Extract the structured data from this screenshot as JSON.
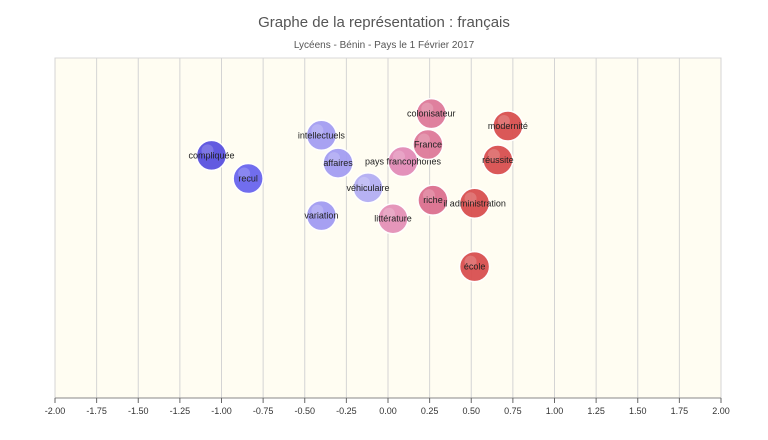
{
  "chart_data": {
    "type": "scatter",
    "title": "Graphe de la représentation : français",
    "subtitle": "Lycéens - Bénin - Pays le 1 Février 2017",
    "xlabel": "",
    "ylabel": "",
    "xlim": [
      -2.0,
      2.0
    ],
    "x_ticks": [
      "-2.00",
      "-1.75",
      "-1.50",
      "-1.25",
      "-1.00",
      "-0.75",
      "-0.50",
      "-0.25",
      "0.00",
      "0.25",
      "0.50",
      "0.75",
      "1.00",
      "1.25",
      "1.50",
      "1.75",
      "2.00"
    ],
    "grid": "vertical",
    "background_color": "#fffdf2",
    "points": [
      {
        "label": "compliquée",
        "x": -1.06,
        "y": 0.37,
        "color": "#5a52e0"
      },
      {
        "label": "recul",
        "x": -0.84,
        "y": 0.22,
        "color": "#6a66ee"
      },
      {
        "label": "intellectuels",
        "x": -0.4,
        "y": 0.5,
        "color": "#a49ef2"
      },
      {
        "label": "affaires",
        "x": -0.3,
        "y": 0.32,
        "color": "#a49ef2"
      },
      {
        "label": "véhiculaire",
        "x": -0.12,
        "y": 0.16,
        "color": "#b4aff4"
      },
      {
        "label": "variation",
        "x": -0.4,
        "y": -0.02,
        "color": "#a29cf2"
      },
      {
        "label": "pays francophones",
        "x": 0.09,
        "y": 0.33,
        "color": "#e28cb8"
      },
      {
        "label": "colonisateur",
        "x": 0.26,
        "y": 0.64,
        "color": "#de7a9a"
      },
      {
        "label": "France",
        "x": 0.24,
        "y": 0.44,
        "color": "#de7a9a"
      },
      {
        "label": "littérature",
        "x": 0.03,
        "y": -0.04,
        "color": "#e491b8"
      },
      {
        "label": "riche",
        "x": 0.27,
        "y": 0.08,
        "color": "#dc7090"
      },
      {
        "label": "il administration",
        "x": 0.52,
        "y": 0.06,
        "color": "#d95050"
      },
      {
        "label": "modernité",
        "x": 0.72,
        "y": 0.56,
        "color": "#d95050"
      },
      {
        "label": "réussite",
        "x": 0.66,
        "y": 0.34,
        "color": "#d95050"
      },
      {
        "label": "école",
        "x": 0.52,
        "y": -0.35,
        "color": "#d95050"
      }
    ]
  }
}
